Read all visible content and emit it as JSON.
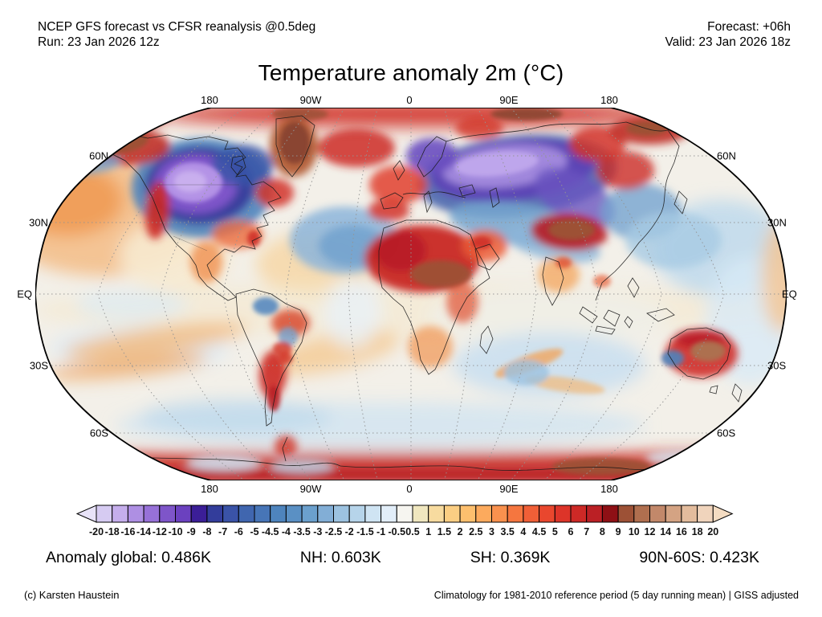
{
  "header": {
    "left_line1": "NCEP GFS forecast vs CFSR reanalysis @0.5deg",
    "left_line2": "Run: 23 Jan 2026 12z",
    "right_line1": "Forecast: +06h",
    "right_line2": "Valid: 23 Jan 2026 18z"
  },
  "title": "Temperature anomaly 2m (°C)",
  "map": {
    "top_labels": [
      "180",
      "90W",
      "0",
      "90E",
      "180"
    ],
    "bottom_labels": [
      "180",
      "90W",
      "0",
      "90E",
      "180"
    ],
    "left_labels": [
      "60N",
      "30N",
      "EQ",
      "30S",
      "60S"
    ],
    "right_labels": [
      "60N",
      "30N",
      "EQ",
      "30S",
      "60S"
    ]
  },
  "chart_data": {
    "type": "heatmap",
    "title": "Temperature anomaly 2m (°C)",
    "projection": "Robinson",
    "units": "°C",
    "variable": "2 m temperature anomaly vs 1981-2010 climatology",
    "model": "NCEP GFS 0.5deg vs CFSR reanalysis",
    "run": "23 Jan 2026 12z",
    "forecast_hour": "+06h",
    "valid": "23 Jan 2026 18z",
    "gridlines": {
      "lat": [
        "60N",
        "30N",
        "EQ",
        "30S",
        "60S"
      ],
      "lon": [
        "180",
        "90W",
        "0",
        "90E",
        "180"
      ],
      "style": "gray dotted, 30 degree spacing"
    },
    "colorbar": {
      "orientation": "horizontal",
      "tick_labels": [
        "-20",
        "-18",
        "-16",
        "-14",
        "-12",
        "-10",
        "-9",
        "-8",
        "-7",
        "-6",
        "-5",
        "-4.5",
        "-4",
        "-3.5",
        "-3",
        "-2.5",
        "-2",
        "-1.5",
        "-1",
        "-0.5",
        "0.5",
        "1",
        "1.5",
        "2",
        "2.5",
        "3",
        "3.5",
        "4",
        "4.5",
        "5",
        "6",
        "7",
        "8",
        "9",
        "10",
        "12",
        "14",
        "16",
        "18",
        "20"
      ],
      "segment_colors": [
        "#d6cbf2",
        "#c5aeec",
        "#ae8fe3",
        "#9771d8",
        "#7e55c9",
        "#6b41bf",
        "#3b1e97",
        "#333d9b",
        "#3a53a7",
        "#4066af",
        "#4775b7",
        "#4e84bd",
        "#5a90c4",
        "#6ba0cd",
        "#82aed6",
        "#9cc2e0",
        "#b6d4ea",
        "#cfe4f3",
        "#e2eef9",
        "#f6f5f0",
        "#f0e7bf",
        "#f7db9f",
        "#fbce83",
        "#fdbf6e",
        "#fcaa5d",
        "#f9914e",
        "#f5763f",
        "#f05f37",
        "#e9472e",
        "#dd3429",
        "#cd2926",
        "#bb2025",
        "#8e1015",
        "#9d5136",
        "#b06f4f",
        "#c2886a",
        "#d4a383",
        "#e3bc9d",
        "#f0d4bc"
      ],
      "arrow_left_color": "#e8e3f8",
      "arrow_right_color": "#f4dcc2"
    },
    "features": [
      {
        "region": "Central North America (US Plains / Midwest)",
        "anomaly_C": -14
      },
      {
        "region": "Eastern Canada / Hudson Bay",
        "anomaly_C": -7
      },
      {
        "region": "Northwest Russia / West Siberia",
        "anomaly_C": -14
      },
      {
        "region": "Scandinavia",
        "anomaly_C": -9
      },
      {
        "region": "Central Asia",
        "anomaly_C": -4
      },
      {
        "region": "North Atlantic mid-latitudes",
        "anomaly_C": -3
      },
      {
        "region": "Northwest Pacific",
        "anomaly_C": -2
      },
      {
        "region": "Alaska / Yukon / Bering Strait",
        "anomaly_C": 10
      },
      {
        "region": "Greenland",
        "anomaly_C": 12
      },
      {
        "region": "Arctic Ocean rim",
        "anomaly_C": 6
      },
      {
        "region": "Northeast Siberia / Chukotka",
        "anomaly_C": 9
      },
      {
        "region": "Western Europe / UK",
        "anomaly_C": 4
      },
      {
        "region": "Sahara / Sahel",
        "anomaly_C": 7
      },
      {
        "region": "Sudan / Chad core",
        "anomaly_C": 10
      },
      {
        "region": "Arabian Peninsula",
        "anomaly_C": 5
      },
      {
        "region": "Tibetan Plateau / Western China",
        "anomaly_C": 10
      },
      {
        "region": "US West Coast",
        "anomaly_C": 6
      },
      {
        "region": "Argentina / Patagonia",
        "anomaly_C": 6
      },
      {
        "region": "Australia interior",
        "anomaly_C": 8
      },
      {
        "region": "Great Australian Bight coast",
        "anomaly_C": -4
      },
      {
        "region": "East Antarctica",
        "anomaly_C": 12
      }
    ],
    "summary_stats": {
      "global_K": 0.486,
      "NH_K": 0.603,
      "SH_K": 0.369,
      "90N_60S_K": 0.423
    }
  },
  "stats": [
    {
      "label": "Anomaly global",
      "value": "0.486K",
      "text": "Anomaly global: 0.486K"
    },
    {
      "label": "NH",
      "value": "0.603K",
      "text": "NH: 0.603K"
    },
    {
      "label": "SH",
      "value": "0.369K",
      "text": "SH: 0.369K"
    },
    {
      "label": "90N-60S",
      "value": "0.423K",
      "text": "90N-60S: 0.423K"
    }
  ],
  "footer": {
    "left": "(c) Karsten Haustein",
    "right": "Climatology for 1981-2010 reference period (5 day running mean) | GISS adjusted"
  }
}
